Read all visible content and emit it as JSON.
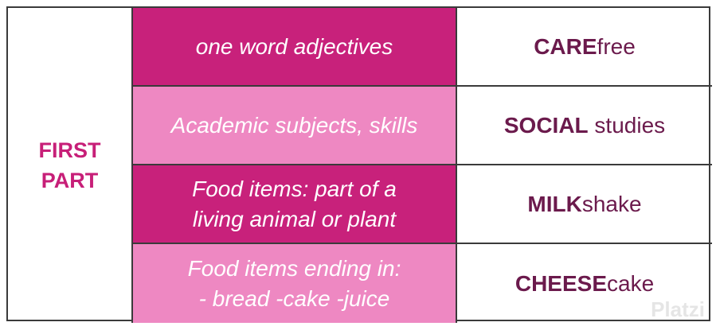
{
  "table": {
    "header": [
      "FIRST",
      "PART"
    ],
    "rows": [
      {
        "category": [
          "one word adjectives"
        ],
        "example_bold": "CARE",
        "example_rest": "free"
      },
      {
        "category": [
          "Academic subjects, skills"
        ],
        "example_bold": "SOCIAL",
        "example_rest": " studies"
      },
      {
        "category": [
          "Food items: part of a",
          "living animal or plant"
        ],
        "example_bold": "MILK",
        "example_rest": "shake"
      },
      {
        "category": [
          "Food items ending in:",
          "- bread -cake -juice"
        ],
        "example_bold": "CHEESE",
        "example_rest": "cake"
      }
    ]
  },
  "watermark": "Platzi"
}
